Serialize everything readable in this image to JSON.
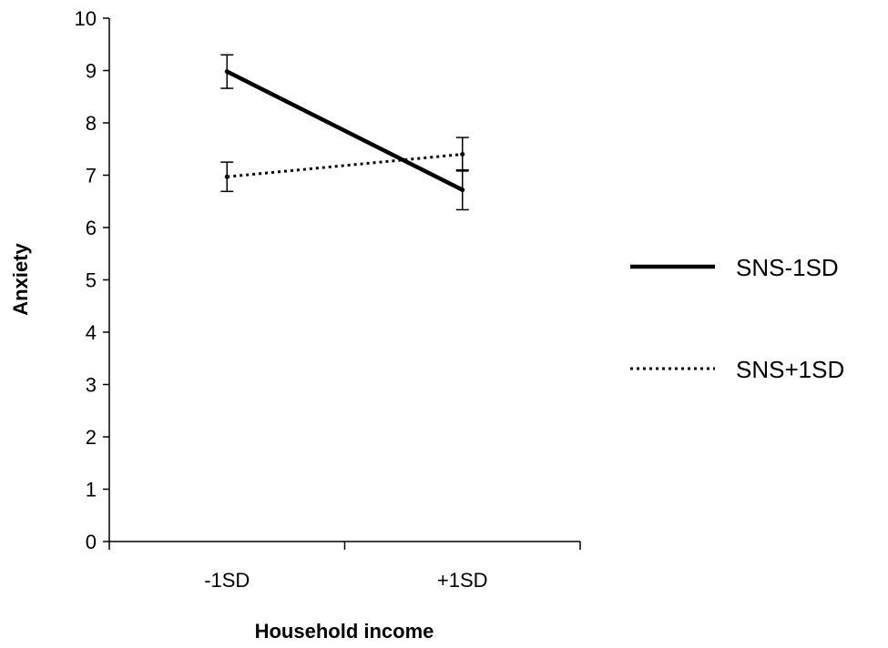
{
  "chart_data": {
    "type": "line",
    "xlabel": "Household income",
    "ylabel": "Anxiety",
    "categories": [
      "-1SD",
      "+1SD"
    ],
    "ylim": [
      0,
      10
    ],
    "yticks": [
      "0",
      "1",
      "2",
      "3",
      "4",
      "5",
      "6",
      "7",
      "8",
      "9",
      "10"
    ],
    "grid": false,
    "legend_position": "right",
    "series": [
      {
        "name": "SNS-1SD",
        "style": "solid",
        "color": "#000000",
        "values": [
          8.98,
          6.72
        ],
        "error": [
          0.32,
          0.38
        ]
      },
      {
        "name": "SNS+1SD",
        "style": "dotted",
        "color": "#000000",
        "values": [
          6.97,
          7.4
        ],
        "error": [
          0.28,
          0.32
        ]
      }
    ]
  }
}
